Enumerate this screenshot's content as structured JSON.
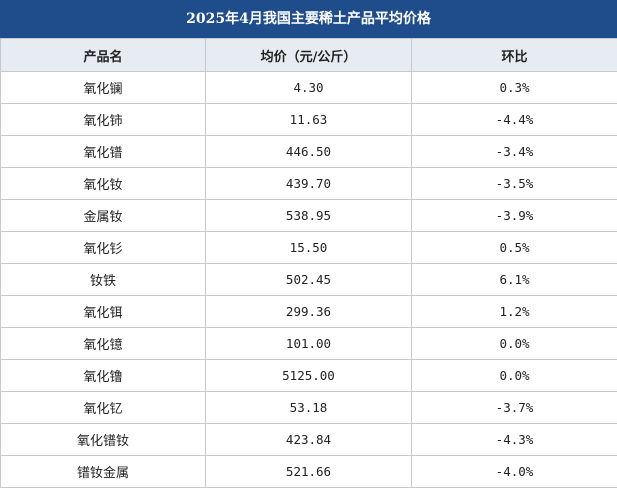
{
  "title": "2025年4月我国主要稀土产品平均价格",
  "columns": [
    "产品名",
    "均价（元/公斤）",
    "环比"
  ],
  "rows": [
    {
      "name": "氧化镧",
      "price": "4.30",
      "mom": "0.3%"
    },
    {
      "name": "氧化铈",
      "price": "11.63",
      "mom": "-4.4%"
    },
    {
      "name": "氧化镨",
      "price": "446.50",
      "mom": "-3.4%"
    },
    {
      "name": "氧化钕",
      "price": "439.70",
      "mom": "-3.5%"
    },
    {
      "name": "金属钕",
      "price": "538.95",
      "mom": "-3.9%"
    },
    {
      "name": "氧化钐",
      "price": "15.50",
      "mom": "0.5%"
    },
    {
      "name": "钕铁",
      "price": "502.45",
      "mom": "6.1%"
    },
    {
      "name": "氧化铒",
      "price": "299.36",
      "mom": "1.2%"
    },
    {
      "name": "氧化镱",
      "price": "101.00",
      "mom": "0.0%"
    },
    {
      "name": "氧化镥",
      "price": "5125.00",
      "mom": "0.0%"
    },
    {
      "name": "氧化钇",
      "price": "53.18",
      "mom": "-3.7%"
    },
    {
      "name": "氧化镨钕",
      "price": "423.84",
      "mom": "-4.3%"
    },
    {
      "name": "镨钕金属",
      "price": "521.66",
      "mom": "-4.0%"
    }
  ]
}
